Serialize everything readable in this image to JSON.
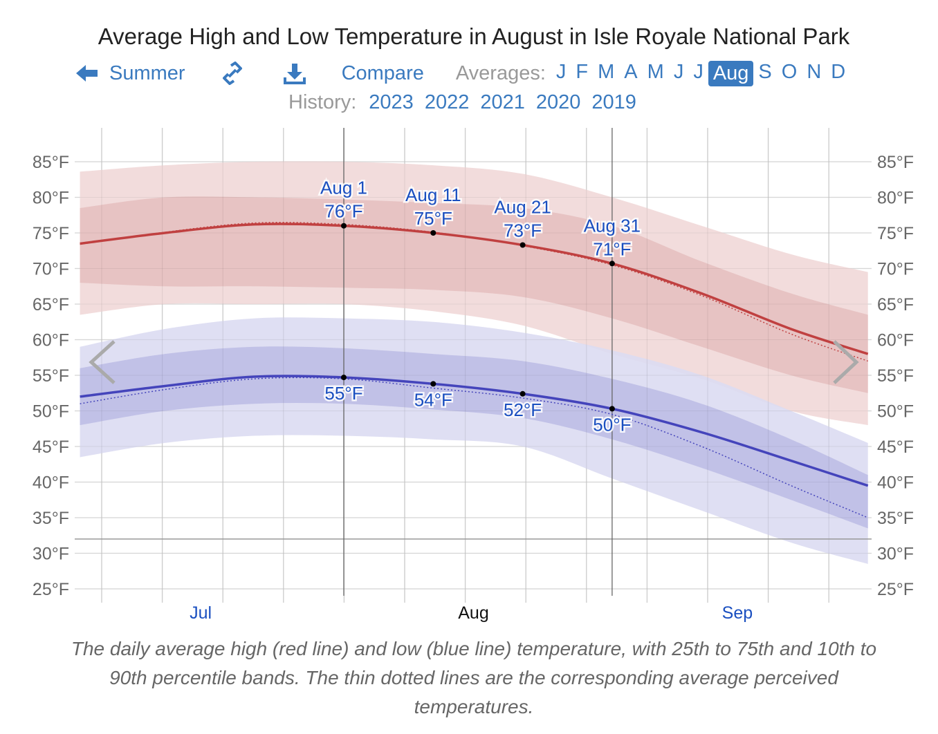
{
  "title": "Average High and Low Temperature in August in Isle Royale National Park",
  "nav": {
    "back_label": "Summer",
    "compare_label": "Compare",
    "averages_label": "Averages:",
    "months": [
      "J",
      "F",
      "M",
      "A",
      "M",
      "J",
      "J",
      "Aug",
      "S",
      "O",
      "N",
      "D"
    ],
    "selected_month_index": 7,
    "history_label": "History:",
    "years": [
      "2023",
      "2022",
      "2021",
      "2020",
      "2019"
    ]
  },
  "colors": {
    "high_line": "#c04040",
    "high_inner": "#e6c0c0",
    "high_outer": "#f2dcdc",
    "low_line": "#4444bb",
    "low_inner": "#bebee6",
    "low_outer": "#dcdcf2",
    "label": "#1a4fc0"
  },
  "caption": "The daily average high (red line) and low (blue line) temperature, with 25th to 75th and 10th to 90th percentile bands. The thin dotted lines are the corresponding average perceived temperatures.",
  "chart_data": {
    "type": "area",
    "title": "Average High and Low Temperature in August in Isle Royale National Park",
    "x_unit": "days from Aug 1",
    "xlim": [
      -29.5,
      58.6
    ],
    "ylim": [
      25,
      85
    ],
    "yticks": [
      85,
      80,
      75,
      70,
      65,
      60,
      55,
      50,
      45,
      40,
      35,
      30,
      25
    ],
    "ytick_labels": [
      "85°F",
      "80°F",
      "75°F",
      "70°F",
      "65°F",
      "60°F",
      "55°F",
      "50°F",
      "45°F",
      "40°F",
      "35°F",
      "30°F",
      "25°F"
    ],
    "month_labels": [
      {
        "label": "Jul",
        "x": -16
      },
      {
        "label": "Aug",
        "x": 14.5
      },
      {
        "label": "Sep",
        "x": 44
      }
    ],
    "x": [
      -29.5,
      -20,
      -10,
      0,
      10,
      20,
      30,
      40,
      50,
      58.6
    ],
    "high": {
      "avg": [
        73.5,
        75,
        76.2,
        76,
        75,
        73.3,
        70.7,
        66.5,
        61.5,
        58
      ],
      "feels": [
        73.4,
        75.1,
        76.4,
        76.2,
        75.1,
        73.2,
        70.5,
        66.2,
        60.8,
        57
      ],
      "p10": [
        63.5,
        65,
        65,
        65,
        64,
        62,
        58,
        54.5,
        50,
        48
      ],
      "p25": [
        68,
        67.5,
        67.5,
        67.3,
        67,
        66,
        63,
        59,
        55,
        52.5
      ],
      "p75": [
        78.5,
        80,
        80,
        79.7,
        79.2,
        78.5,
        76,
        71,
        66.5,
        63.5
      ],
      "p90": [
        83.6,
        84.5,
        85,
        85,
        84.5,
        83.3,
        80,
        76,
        72,
        69.5
      ]
    },
    "low": {
      "avg": [
        52,
        53.5,
        54.8,
        54.7,
        53.8,
        52.4,
        50.3,
        47,
        43,
        39.5
      ],
      "feels": [
        51,
        53,
        54.5,
        54.5,
        53.2,
        51.8,
        49.5,
        45,
        39.5,
        35
      ],
      "p10": [
        43.5,
        45.5,
        46.5,
        46.5,
        46,
        45,
        40.5,
        36,
        31.5,
        28.5
      ],
      "p25": [
        48,
        50,
        51,
        51,
        50.2,
        49,
        46,
        42,
        37.5,
        33.5
      ],
      "p75": [
        56,
        58,
        59,
        58.8,
        58,
        57,
        54.5,
        51,
        46,
        41
      ],
      "p90": [
        59,
        61.5,
        63,
        63,
        62.5,
        61,
        58.5,
        55,
        50,
        45.5
      ]
    },
    "annotations": [
      {
        "x": 0,
        "date": "Aug 1",
        "high": 76,
        "high_label": "76°F",
        "low": 54.7,
        "low_label": "55°F"
      },
      {
        "x": 10,
        "date": "Aug 11",
        "high": 75,
        "high_label": "75°F",
        "low": 53.8,
        "low_label": "54°F"
      },
      {
        "x": 20,
        "date": "Aug 21",
        "high": 73.3,
        "high_label": "73°F",
        "low": 52.4,
        "low_label": "52°F"
      },
      {
        "x": 30,
        "date": "Aug 31",
        "high": 70.7,
        "high_label": "71°F",
        "low": 50.3,
        "low_label": "50°F"
      }
    ],
    "freezing_line": 32
  }
}
